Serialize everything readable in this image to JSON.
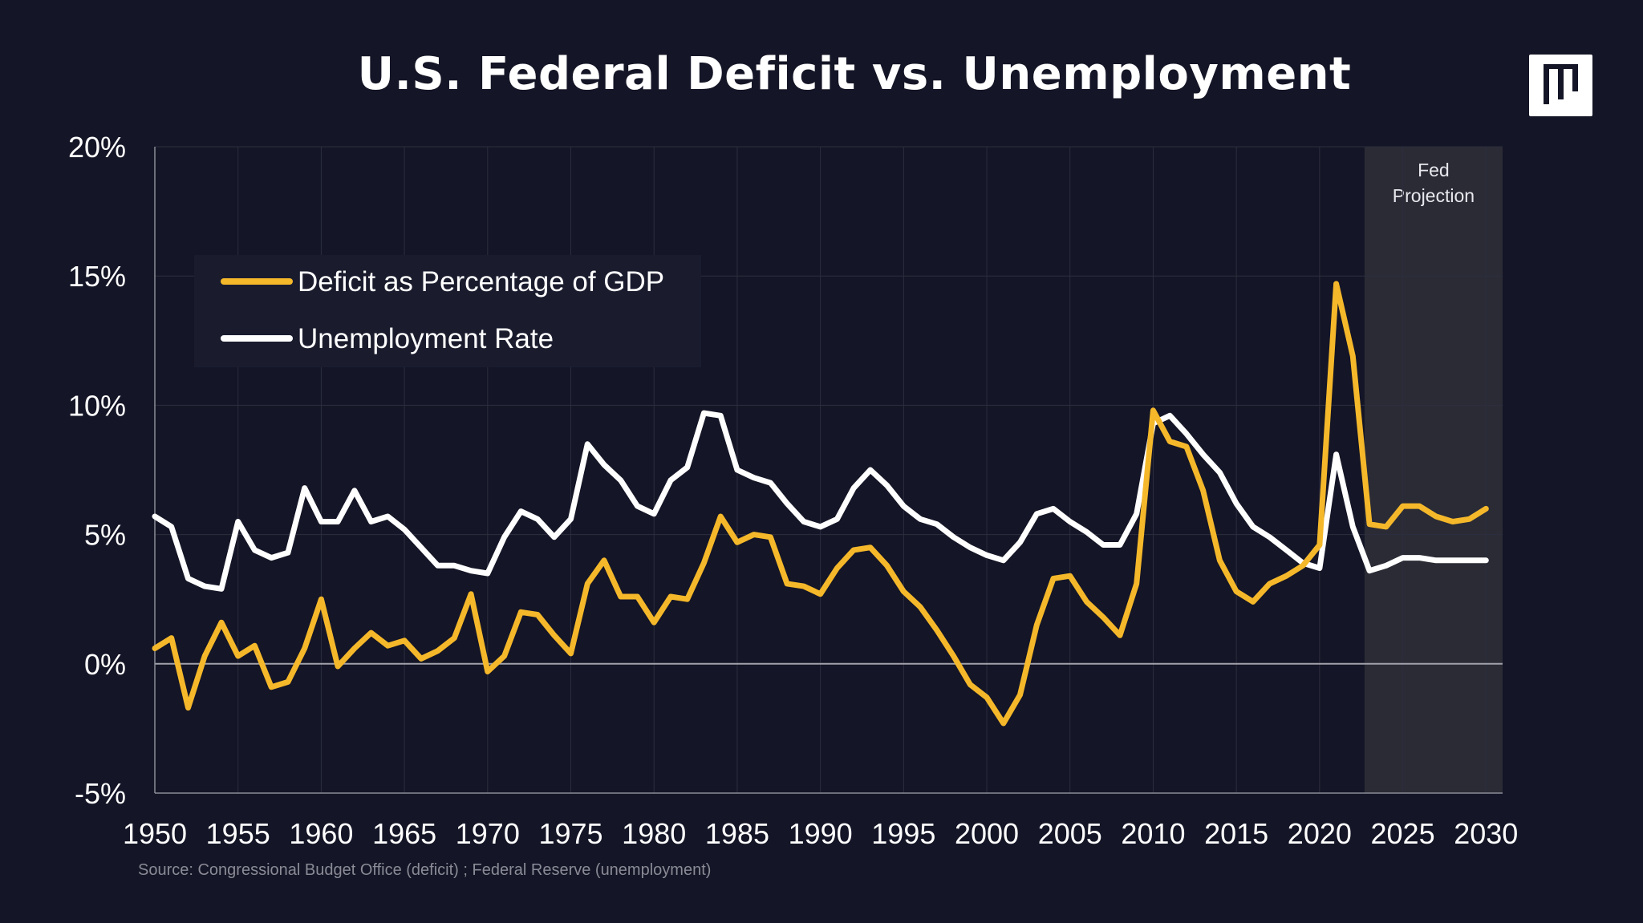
{
  "title": "U.S. Federal Deficit vs. Unemployment",
  "source": "Source: Congressional Budget Office (deficit) ; Federal Reserve (unemployment)",
  "projection_label": [
    "Fed",
    "Projection"
  ],
  "colors": {
    "background": "#141526",
    "deficit": "#f5b82a",
    "unemployment": "#ffffff",
    "projection_band": "#2a2b35",
    "legend_bg": "#1a1c2e"
  },
  "chart_data": {
    "type": "line",
    "title": "U.S. Federal Deficit vs. Unemployment",
    "xlabel": "",
    "ylabel": "",
    "xlim": [
      1950,
      2031
    ],
    "ylim": [
      -5,
      20
    ],
    "x_ticks": [
      1950,
      1955,
      1960,
      1965,
      1970,
      1975,
      1980,
      1985,
      1990,
      1995,
      2000,
      2005,
      2010,
      2015,
      2020,
      2025,
      2030
    ],
    "y_ticks": [
      -5,
      0,
      5,
      10,
      15,
      20
    ],
    "y_tick_labels": [
      "-5%",
      "0%",
      "5%",
      "10%",
      "15%",
      "20%"
    ],
    "grid": true,
    "legend_position": "top-left",
    "projection_range": [
      2022.7,
      2031
    ],
    "x": [
      1950,
      1951,
      1952,
      1953,
      1954,
      1955,
      1956,
      1957,
      1958,
      1959,
      1960,
      1961,
      1962,
      1963,
      1964,
      1965,
      1966,
      1967,
      1968,
      1969,
      1970,
      1971,
      1972,
      1973,
      1974,
      1975,
      1976,
      1977,
      1978,
      1979,
      1980,
      1981,
      1982,
      1983,
      1984,
      1985,
      1986,
      1987,
      1988,
      1989,
      1990,
      1991,
      1992,
      1993,
      1994,
      1995,
      1996,
      1997,
      1998,
      1999,
      2000,
      2001,
      2002,
      2003,
      2004,
      2005,
      2006,
      2007,
      2008,
      2009,
      2010,
      2011,
      2012,
      2013,
      2014,
      2015,
      2016,
      2017,
      2018,
      2019,
      2020,
      2021,
      2022,
      2023,
      2024,
      2025,
      2026,
      2027,
      2028,
      2029,
      2030
    ],
    "series": [
      {
        "name": "Deficit as Percentage of GDP",
        "color": "#f5b82a",
        "values": [
          0.6,
          1.0,
          -1.7,
          0.3,
          1.6,
          0.3,
          0.7,
          -0.9,
          -0.7,
          0.6,
          2.5,
          -0.1,
          0.6,
          1.2,
          0.7,
          0.9,
          0.2,
          0.5,
          1.0,
          2.7,
          -0.3,
          0.3,
          2.0,
          1.9,
          1.1,
          0.4,
          3.1,
          4.0,
          2.6,
          2.6,
          1.6,
          2.6,
          2.5,
          3.9,
          5.7,
          4.7,
          5.0,
          4.9,
          3.1,
          3.0,
          2.7,
          3.7,
          4.4,
          4.5,
          3.8,
          2.8,
          2.2,
          1.3,
          0.3,
          -0.8,
          -1.3,
          -2.3,
          -1.2,
          1.5,
          3.3,
          3.4,
          2.4,
          1.8,
          1.1,
          3.1,
          9.8,
          8.6,
          8.4,
          6.7,
          4.0,
          2.8,
          2.4,
          3.1,
          3.4,
          3.8,
          4.6,
          14.7,
          11.9,
          5.4,
          5.3,
          6.1,
          6.1,
          5.7,
          5.5,
          5.6,
          6.0
        ]
      },
      {
        "name": "Unemployment Rate",
        "color": "#ffffff",
        "values": [
          5.7,
          5.3,
          3.3,
          3.0,
          2.9,
          5.5,
          4.4,
          4.1,
          4.3,
          6.8,
          5.5,
          5.5,
          6.7,
          5.5,
          5.7,
          5.2,
          4.5,
          3.8,
          3.8,
          3.6,
          3.5,
          4.9,
          5.9,
          5.6,
          4.9,
          5.6,
          8.5,
          7.7,
          7.1,
          6.1,
          5.8,
          7.1,
          7.6,
          9.7,
          9.6,
          7.5,
          7.2,
          7.0,
          6.2,
          5.5,
          5.3,
          5.6,
          6.8,
          7.5,
          6.9,
          6.1,
          5.6,
          5.4,
          4.9,
          4.5,
          4.2,
          4.0,
          4.7,
          5.8,
          6.0,
          5.5,
          5.1,
          4.6,
          4.6,
          5.8,
          9.3,
          9.6,
          8.9,
          8.1,
          7.4,
          6.2,
          5.3,
          4.9,
          4.4,
          3.9,
          3.7,
          8.1,
          5.3,
          3.6,
          3.8,
          4.1,
          4.1,
          4.0,
          4.0,
          4.0,
          4.0
        ]
      }
    ]
  }
}
